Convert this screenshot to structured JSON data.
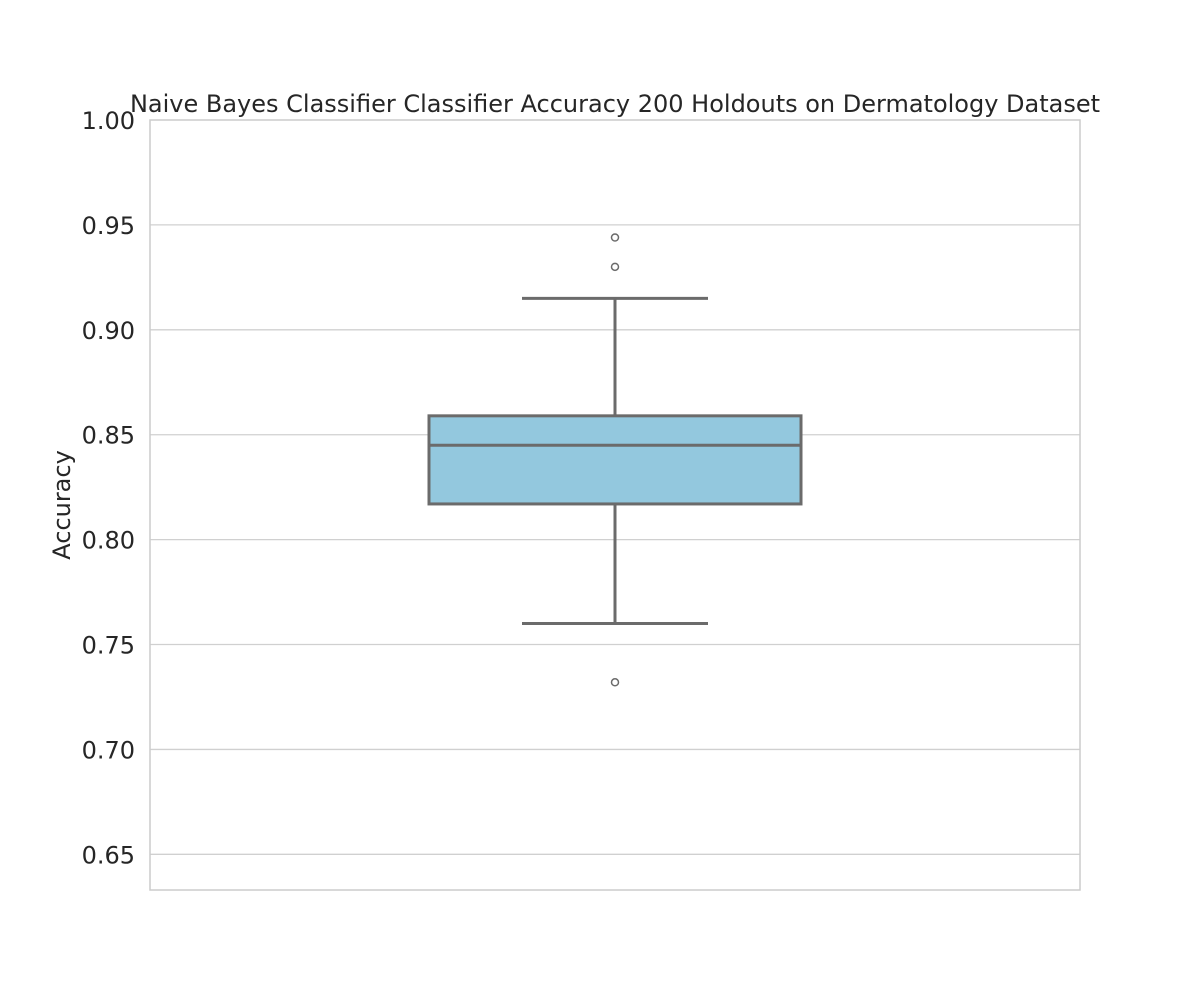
{
  "chart_data": {
    "type": "box",
    "title": "Naive Bayes Classifier Classifier Accuracy 200 Holdouts on Dermatology Dataset",
    "xlabel": "",
    "ylabel": "Accuracy",
    "ylim": [
      0.633,
      1.0
    ],
    "yticks": [
      "0.65",
      "0.70",
      "0.75",
      "0.80",
      "0.85",
      "0.90",
      "0.95",
      "1.00"
    ],
    "grid": true,
    "box": {
      "whisker_low": 0.76,
      "q1": 0.817,
      "median": 0.845,
      "q3": 0.859,
      "whisker_high": 0.915,
      "outliers": [
        0.944,
        0.93,
        0.732
      ]
    },
    "colors": {
      "box_fill": "#93c8de",
      "box_line": "#6b6b6b",
      "grid": "#d0d0d0",
      "frame": "#cccccc"
    }
  }
}
